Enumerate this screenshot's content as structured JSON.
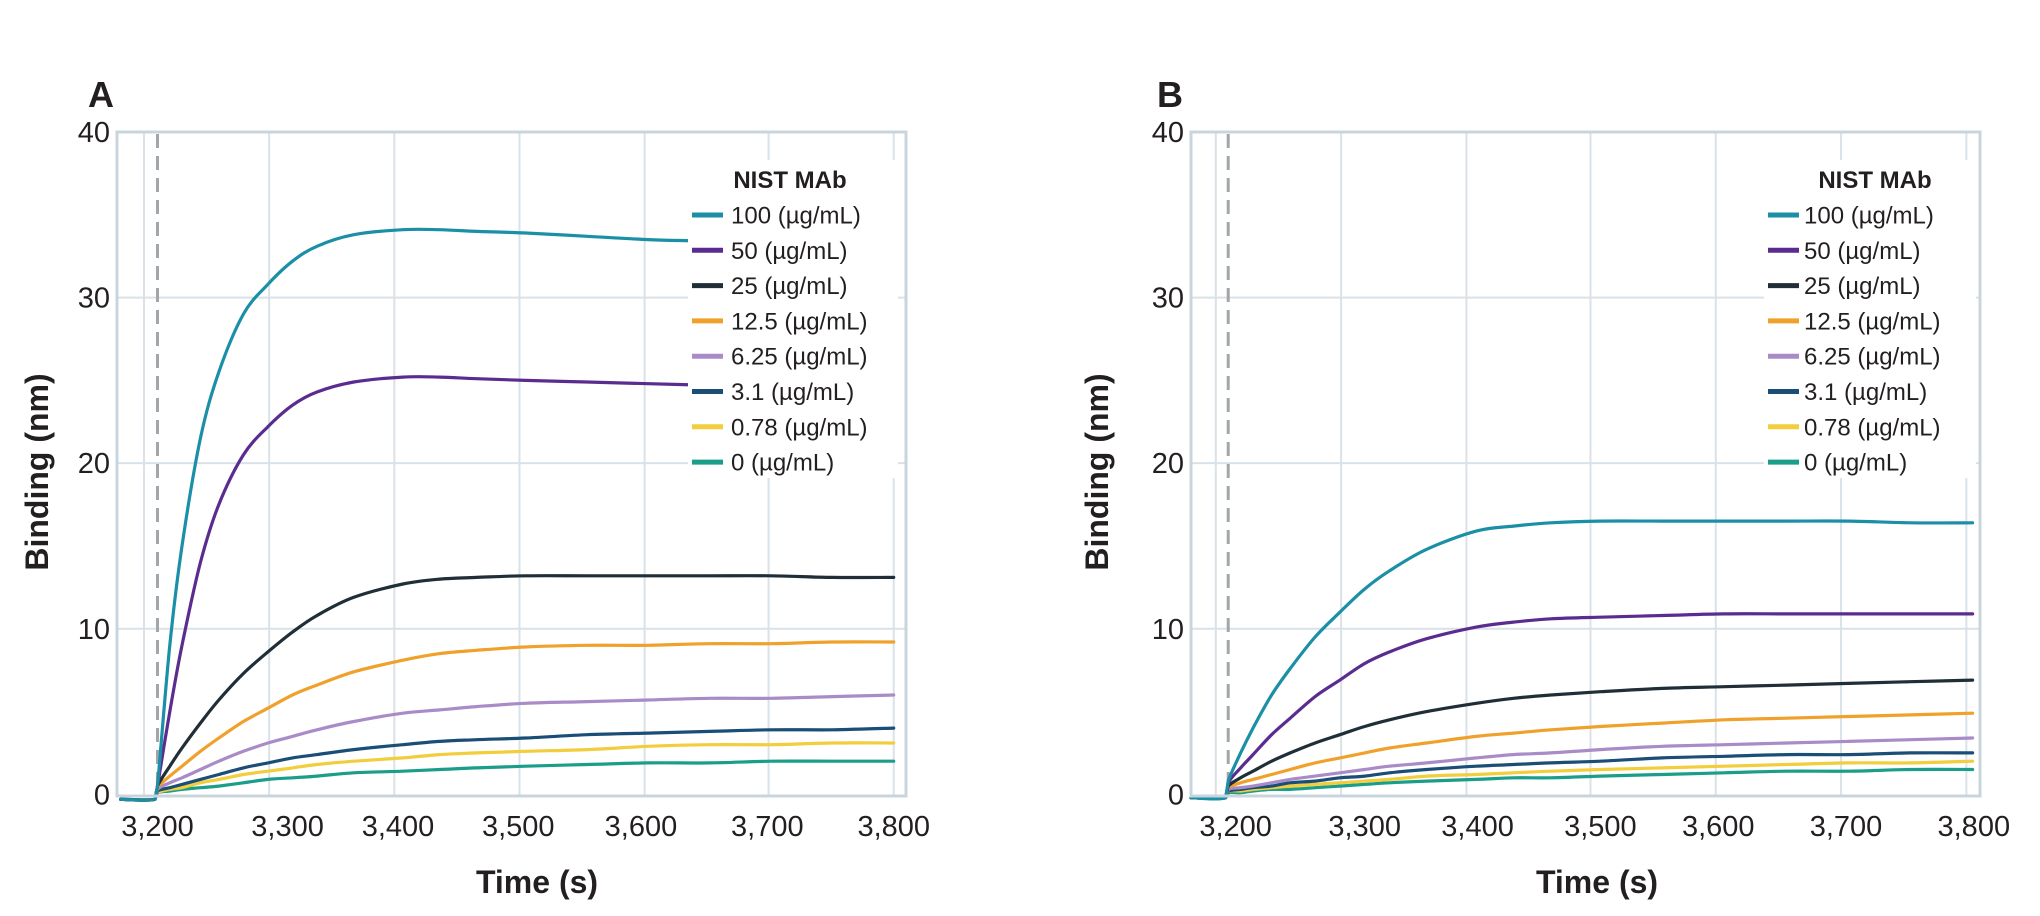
{
  "figure": {
    "legend_title": "NIST MAb"
  },
  "chart_data": [
    {
      "type": "line",
      "panel_label": "A",
      "title": "",
      "xlabel": "Time (s)",
      "ylabel": "Binding (nm)",
      "xlim": [
        3167,
        3810
      ],
      "ylim": [
        -0.1,
        40
      ],
      "grid": true,
      "association_start": 3200,
      "x_gridlines": [
        3189,
        3291,
        3393,
        3495,
        3597,
        3698,
        3800
      ],
      "y_gridlines": [
        10,
        20,
        30,
        40
      ],
      "x_ticks": [
        {
          "at": 3200,
          "label": "3,200"
        },
        {
          "at": 3306,
          "label": "3,300"
        },
        {
          "at": 3396,
          "label": "3,400"
        },
        {
          "at": 3494,
          "label": "3,500"
        },
        {
          "at": 3594,
          "label": "3,600"
        },
        {
          "at": 3697,
          "label": "3,700"
        },
        {
          "at": 3800,
          "label": "3,800"
        }
      ],
      "y_ticks": [
        {
          "at": 0,
          "label": "0"
        },
        {
          "at": 10,
          "label": "10"
        },
        {
          "at": 20,
          "label": "20"
        },
        {
          "at": 30,
          "label": "30"
        },
        {
          "at": 40,
          "label": "40"
        }
      ],
      "legend": {
        "title": "NIST MAb",
        "placement": "top-right"
      },
      "x": [
        3170,
        3198,
        3200,
        3210,
        3220,
        3235,
        3250,
        3270,
        3290,
        3310,
        3330,
        3360,
        3400,
        3430,
        3460,
        3500,
        3550,
        3600,
        3650,
        3700,
        3750,
        3800
      ],
      "series": [
        {
          "name": "100 (µg/mL)",
          "color": "#1a8fa6",
          "values": [
            -0.3,
            -0.3,
            0.5,
            9,
            15,
            21.5,
            25.5,
            29,
            30.8,
            32.2,
            33.1,
            33.8,
            34.1,
            34.1,
            34.0,
            33.9,
            33.7,
            33.5,
            33.4,
            33.2,
            33.1,
            33.0
          ]
        },
        {
          "name": "50 (µg/mL)",
          "color": "#5b2c8f",
          "values": [
            -0.3,
            -0.3,
            0.5,
            5,
            9,
            14,
            17.5,
            20.5,
            22.2,
            23.5,
            24.3,
            24.9,
            25.2,
            25.2,
            25.1,
            25.0,
            24.9,
            24.8,
            24.7,
            24.6,
            24.5,
            24.5
          ]
        },
        {
          "name": "25 (µg/mL)",
          "color": "#1f2e37",
          "values": [
            -0.3,
            -0.3,
            0.5,
            1.7,
            2.8,
            4.3,
            5.7,
            7.3,
            8.6,
            9.8,
            10.8,
            11.9,
            12.7,
            13.0,
            13.1,
            13.2,
            13.2,
            13.2,
            13.2,
            13.2,
            13.1,
            13.1
          ]
        },
        {
          "name": "12.5 (µg/mL)",
          "color": "#f0a12b",
          "values": [
            -0.3,
            -0.3,
            0.4,
            1.1,
            1.7,
            2.6,
            3.4,
            4.4,
            5.2,
            6.0,
            6.6,
            7.4,
            8.1,
            8.5,
            8.7,
            8.9,
            9.0,
            9.0,
            9.1,
            9.1,
            9.2,
            9.2
          ]
        },
        {
          "name": "6.25 (µg/mL)",
          "color": "#a98bc8",
          "values": [
            -0.3,
            -0.3,
            0.3,
            0.7,
            1.0,
            1.5,
            2.0,
            2.6,
            3.1,
            3.5,
            3.9,
            4.4,
            4.9,
            5.1,
            5.3,
            5.5,
            5.6,
            5.7,
            5.8,
            5.8,
            5.9,
            6.0
          ]
        },
        {
          "name": "3.1 (µg/mL)",
          "color": "#1a4e76",
          "values": [
            -0.3,
            -0.3,
            0.2,
            0.4,
            0.6,
            0.9,
            1.2,
            1.6,
            1.9,
            2.2,
            2.4,
            2.7,
            3.0,
            3.2,
            3.3,
            3.4,
            3.6,
            3.7,
            3.8,
            3.9,
            3.9,
            4.0
          ]
        },
        {
          "name": "0.78 (µg/mL)",
          "color": "#f2cd3c",
          "values": [
            -0.3,
            -0.3,
            0.1,
            0.3,
            0.4,
            0.7,
            0.9,
            1.2,
            1.4,
            1.6,
            1.8,
            2.0,
            2.2,
            2.4,
            2.5,
            2.6,
            2.7,
            2.9,
            3.0,
            3.0,
            3.1,
            3.1
          ]
        },
        {
          "name": "0 (µg/mL)",
          "color": "#1a9d89",
          "values": [
            -0.3,
            -0.3,
            0.1,
            0.2,
            0.3,
            0.4,
            0.5,
            0.7,
            0.9,
            1.0,
            1.1,
            1.3,
            1.4,
            1.5,
            1.6,
            1.7,
            1.8,
            1.9,
            1.9,
            2.0,
            2.0,
            2.0
          ]
        }
      ]
    },
    {
      "type": "line",
      "panel_label": "B",
      "title": "",
      "xlabel": "Time (s)",
      "ylabel": "Binding (nm)",
      "xlim": [
        3170,
        3806
      ],
      "ylim": [
        -0.1,
        40
      ],
      "grid": true,
      "association_start": 3200,
      "x_gridlines": [
        3190,
        3291,
        3392,
        3492,
        3593,
        3694,
        3795
      ],
      "y_gridlines": [
        10,
        20,
        30,
        40
      ],
      "x_ticks": [
        {
          "at": 3206,
          "label": "3,200"
        },
        {
          "at": 3310,
          "label": "3,300"
        },
        {
          "at": 3401,
          "label": "3,400"
        },
        {
          "at": 3500,
          "label": "3,500"
        },
        {
          "at": 3595,
          "label": "3,600"
        },
        {
          "at": 3698,
          "label": "3,700"
        },
        {
          "at": 3801,
          "label": "3,800"
        }
      ],
      "y_ticks": [
        {
          "at": 0,
          "label": "0"
        },
        {
          "at": 10,
          "label": "10"
        },
        {
          "at": 20,
          "label": "20"
        },
        {
          "at": 30,
          "label": "30"
        },
        {
          "at": 40,
          "label": "40"
        }
      ],
      "legend": {
        "title": "NIST MAb",
        "placement": "top-right"
      },
      "x": [
        3170,
        3198,
        3200,
        3210,
        3220,
        3235,
        3250,
        3270,
        3290,
        3310,
        3330,
        3360,
        3400,
        3430,
        3460,
        3500,
        3550,
        3600,
        3650,
        3700,
        3750,
        3800
      ],
      "series": [
        {
          "name": "100 (µg/mL)",
          "color": "#1a8fa6",
          "values": [
            -0.2,
            -0.2,
            0.8,
            2.5,
            4.0,
            6.0,
            7.6,
            9.5,
            11.0,
            12.4,
            13.5,
            14.8,
            15.9,
            16.2,
            16.4,
            16.5,
            16.5,
            16.5,
            16.5,
            16.5,
            16.4,
            16.4
          ]
        },
        {
          "name": "50 (µg/mL)",
          "color": "#5b2c8f",
          "values": [
            -0.2,
            -0.2,
            0.7,
            1.6,
            2.4,
            3.6,
            4.6,
            5.9,
            6.9,
            7.9,
            8.6,
            9.4,
            10.1,
            10.4,
            10.6,
            10.7,
            10.8,
            10.9,
            10.9,
            10.9,
            10.9,
            10.9
          ]
        },
        {
          "name": "25 (µg/mL)",
          "color": "#1f2e37",
          "values": [
            -0.2,
            -0.2,
            0.5,
            1.0,
            1.4,
            2.0,
            2.5,
            3.1,
            3.6,
            4.1,
            4.5,
            5.0,
            5.5,
            5.8,
            6.0,
            6.2,
            6.4,
            6.5,
            6.6,
            6.7,
            6.8,
            6.9
          ]
        },
        {
          "name": "12.5 (µg/mL)",
          "color": "#f0a12b",
          "values": [
            -0.2,
            -0.2,
            0.4,
            0.7,
            0.9,
            1.2,
            1.5,
            1.9,
            2.2,
            2.5,
            2.8,
            3.1,
            3.5,
            3.7,
            3.9,
            4.1,
            4.3,
            4.5,
            4.6,
            4.7,
            4.8,
            4.9
          ]
        },
        {
          "name": "6.25 (µg/mL)",
          "color": "#a98bc8",
          "values": [
            -0.2,
            -0.2,
            0.3,
            0.4,
            0.5,
            0.7,
            0.9,
            1.1,
            1.3,
            1.5,
            1.7,
            1.9,
            2.2,
            2.4,
            2.5,
            2.7,
            2.9,
            3.0,
            3.1,
            3.2,
            3.3,
            3.4
          ]
        },
        {
          "name": "3.1 (µg/mL)",
          "color": "#1a4e76",
          "values": [
            -0.2,
            -0.2,
            0.2,
            0.3,
            0.4,
            0.5,
            0.7,
            0.8,
            1.0,
            1.1,
            1.3,
            1.5,
            1.7,
            1.8,
            1.9,
            2.0,
            2.2,
            2.3,
            2.4,
            2.4,
            2.5,
            2.5
          ]
        },
        {
          "name": "0.78 (µg/mL)",
          "color": "#f2cd3c",
          "values": [
            -0.2,
            -0.2,
            0.2,
            0.2,
            0.3,
            0.4,
            0.5,
            0.6,
            0.7,
            0.8,
            0.9,
            1.1,
            1.2,
            1.3,
            1.4,
            1.5,
            1.6,
            1.7,
            1.8,
            1.9,
            1.9,
            2.0
          ]
        },
        {
          "name": "0 (µg/mL)",
          "color": "#1a9d89",
          "values": [
            -0.2,
            -0.2,
            0.1,
            0.1,
            0.2,
            0.3,
            0.3,
            0.4,
            0.5,
            0.6,
            0.7,
            0.8,
            0.9,
            1.0,
            1.0,
            1.1,
            1.2,
            1.3,
            1.4,
            1.4,
            1.5,
            1.5
          ]
        }
      ]
    }
  ]
}
